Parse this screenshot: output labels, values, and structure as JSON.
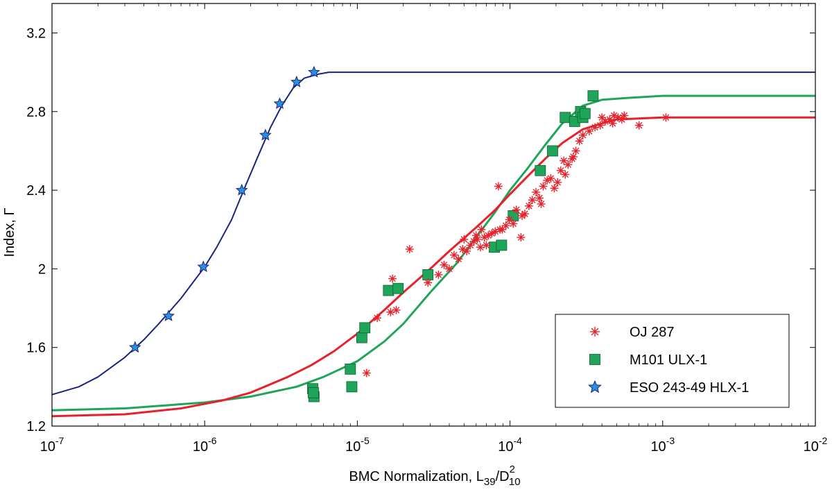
{
  "chart_data": {
    "type": "scatter",
    "title": "",
    "xlabel_main": "BMC Normalization, L",
    "xlabel_sub1": "39",
    "xlabel_slash": "/D",
    "xlabel_sup": "2",
    "xlabel_sub2": "10",
    "ylabel": "Index, Γ",
    "xscale": "log",
    "xlim": [
      1e-07,
      0.01
    ],
    "ylim": [
      1.2,
      3.35
    ],
    "xticks": [
      {
        "value": 1e-07,
        "base": "10",
        "exp": "-7"
      },
      {
        "value": 1e-06,
        "base": "10",
        "exp": "-6"
      },
      {
        "value": 1e-05,
        "base": "10",
        "exp": "-5"
      },
      {
        "value": 0.0001,
        "base": "10",
        "exp": "-4"
      },
      {
        "value": 0.001,
        "base": "10",
        "exp": "-3"
      },
      {
        "value": 0.01,
        "base": "10",
        "exp": "-2"
      }
    ],
    "yticks": [
      {
        "value": 1.2,
        "label": "1.2"
      },
      {
        "value": 1.6,
        "label": "1.6"
      },
      {
        "value": 2.0,
        "label": "2"
      },
      {
        "value": 2.4,
        "label": "2.4"
      },
      {
        "value": 2.8,
        "label": "2.8"
      },
      {
        "value": 3.2,
        "label": "3.2"
      }
    ],
    "legend": {
      "position": "bottom-right",
      "entries": [
        {
          "label": "OJ 287",
          "marker": "asterisk",
          "color": "#e8202a"
        },
        {
          "label": "M101 ULX-1",
          "marker": "square",
          "color": "#1fa55a"
        },
        {
          "label": "ESO 243-49 HLX-1",
          "marker": "star",
          "color": "#2b8fe0"
        }
      ]
    },
    "colors": {
      "eso_curve": "#1a237e",
      "eso_marker": "#2b8fe0",
      "m101_curve": "#1fa55a",
      "m101_marker": "#1fa55a",
      "oj_curve": "#e8202a",
      "oj_marker": "#e8202a"
    },
    "series": [
      {
        "name": "ESO 243-49 HLX-1",
        "kind": "points",
        "marker": "star",
        "x": [
          3.5e-07,
          5.8e-07,
          9.8e-07,
          1.75e-06,
          2.5e-06,
          3.1e-06,
          4e-06,
          5.2e-06
        ],
        "y": [
          1.6,
          1.76,
          2.01,
          2.4,
          2.68,
          2.84,
          2.95,
          3.0
        ]
      },
      {
        "name": "M101 ULX-1",
        "kind": "points",
        "marker": "square",
        "x": [
          5.1e-06,
          5.2e-06,
          5.15e-06,
          9e-06,
          9.2e-06,
          1.07e-05,
          1.12e-05,
          1.6e-05,
          1.85e-05,
          2.9e-05,
          7.9e-05,
          8.8e-05,
          0.000105,
          0.000158,
          0.00019,
          0.00023,
          0.000265,
          0.00029,
          0.0003,
          0.00031,
          0.00035
        ],
        "y": [
          1.39,
          1.35,
          1.37,
          1.49,
          1.4,
          1.65,
          1.7,
          1.89,
          1.9,
          1.97,
          2.11,
          2.12,
          2.27,
          2.5,
          2.6,
          2.77,
          2.75,
          2.8,
          2.77,
          2.79,
          2.88
        ]
      },
      {
        "name": "OJ 287",
        "kind": "points",
        "marker": "asterisk",
        "x": [
          1.15e-05,
          1.35e-05,
          1.7e-05,
          1.65e-05,
          1.8e-05,
          2.2e-05,
          2.9e-05,
          3.4e-05,
          3.7e-05,
          4e-05,
          4.3e-05,
          4.6e-05,
          4.9e-05,
          5.2e-05,
          5.5e-05,
          5.8e-05,
          6.1e-05,
          6.4e-05,
          6.8e-05,
          7.2e-05,
          7.6e-05,
          8e-05,
          8.4e-05,
          8.9e-05,
          9.4e-05,
          9.9e-05,
          0.000105,
          0.00011,
          0.000118,
          0.000125,
          0.000133,
          0.00014,
          0.000148,
          0.000156,
          0.000165,
          0.000175,
          0.000185,
          0.000195,
          0.000205,
          0.000215,
          0.000225,
          0.00024,
          0.000255,
          0.00027,
          0.000285,
          0.0003,
          0.00033,
          0.00036,
          0.00039,
          0.00042,
          0.00045,
          0.00048,
          0.00051,
          0.00054,
          0.0007,
          0.00105,
          8.6e-05,
          5e-05,
          6e-05,
          7e-05,
          6.5e-05,
          0.00012,
          0.00016,
          0.00023,
          0.00026,
          0.0004,
          0.00047,
          0.00056
        ],
        "y": [
          1.47,
          1.75,
          1.95,
          1.78,
          1.79,
          2.1,
          1.93,
          1.97,
          2.02,
          2.0,
          2.07,
          2.05,
          2.1,
          2.09,
          2.12,
          2.14,
          2.15,
          2.11,
          2.16,
          2.17,
          2.18,
          2.19,
          2.42,
          2.2,
          2.22,
          2.25,
          2.23,
          2.3,
          2.16,
          2.28,
          2.32,
          2.35,
          2.39,
          2.36,
          2.42,
          2.45,
          2.46,
          2.41,
          2.44,
          2.5,
          2.55,
          2.53,
          2.56,
          2.6,
          2.65,
          2.68,
          2.7,
          2.72,
          2.73,
          2.75,
          2.76,
          2.78,
          2.77,
          2.76,
          2.73,
          2.77,
          2.2,
          2.15,
          2.17,
          2.12,
          2.2,
          2.27,
          2.33,
          2.48,
          2.57,
          2.77,
          2.74,
          2.78
        ]
      },
      {
        "name": "ESO fit",
        "kind": "curve",
        "color": "#1a237e",
        "x": [
          1e-07,
          1.5e-07,
          2e-07,
          3e-07,
          4e-07,
          5e-07,
          6e-07,
          7e-07,
          8e-07,
          1e-06,
          1.2e-06,
          1.5e-06,
          1.8e-06,
          2.2e-06,
          2.7e-06,
          3.2e-06,
          3.8e-06,
          4.5e-06,
          5.5e-06,
          6.5e-06,
          8e-06,
          1e-05,
          0.0001,
          0.001,
          0.01
        ],
        "y": [
          1.36,
          1.4,
          1.45,
          1.55,
          1.64,
          1.72,
          1.79,
          1.85,
          1.91,
          2.01,
          2.11,
          2.25,
          2.4,
          2.56,
          2.72,
          2.83,
          2.92,
          2.97,
          2.99,
          3.0,
          3.0,
          3.0,
          3.0,
          3.0,
          3.0
        ]
      },
      {
        "name": "M101 fit",
        "kind": "curve",
        "color": "#1fa55a",
        "x": [
          1e-07,
          3e-07,
          1e-06,
          2e-06,
          4e-06,
          6e-06,
          1e-05,
          1.5e-05,
          2e-05,
          3e-05,
          4.5e-05,
          6e-05,
          8e-05,
          0.0001,
          0.00013,
          0.00017,
          0.00022,
          0.0003,
          0.0004,
          0.0006,
          0.001,
          0.01
        ],
        "y": [
          1.28,
          1.29,
          1.32,
          1.35,
          1.4,
          1.45,
          1.53,
          1.63,
          1.72,
          1.88,
          2.03,
          2.16,
          2.29,
          2.4,
          2.51,
          2.63,
          2.74,
          2.83,
          2.86,
          2.87,
          2.88,
          2.88
        ]
      },
      {
        "name": "OJ 287 fit",
        "kind": "curve",
        "color": "#e8202a",
        "x": [
          1e-07,
          3e-07,
          7e-07,
          1.3e-06,
          2e-06,
          3.5e-06,
          5e-06,
          7e-06,
          1e-05,
          1.5e-05,
          2e-05,
          3e-05,
          4e-05,
          6e-05,
          8e-05,
          0.0001,
          0.00013,
          0.00017,
          0.00022,
          0.0003,
          0.0004,
          0.0005,
          0.0007,
          0.001,
          0.01
        ],
        "y": [
          1.25,
          1.26,
          1.29,
          1.33,
          1.37,
          1.45,
          1.51,
          1.58,
          1.67,
          1.79,
          1.88,
          2.0,
          2.09,
          2.21,
          2.3,
          2.38,
          2.47,
          2.56,
          2.64,
          2.71,
          2.74,
          2.76,
          2.765,
          2.77,
          2.77
        ]
      }
    ]
  }
}
